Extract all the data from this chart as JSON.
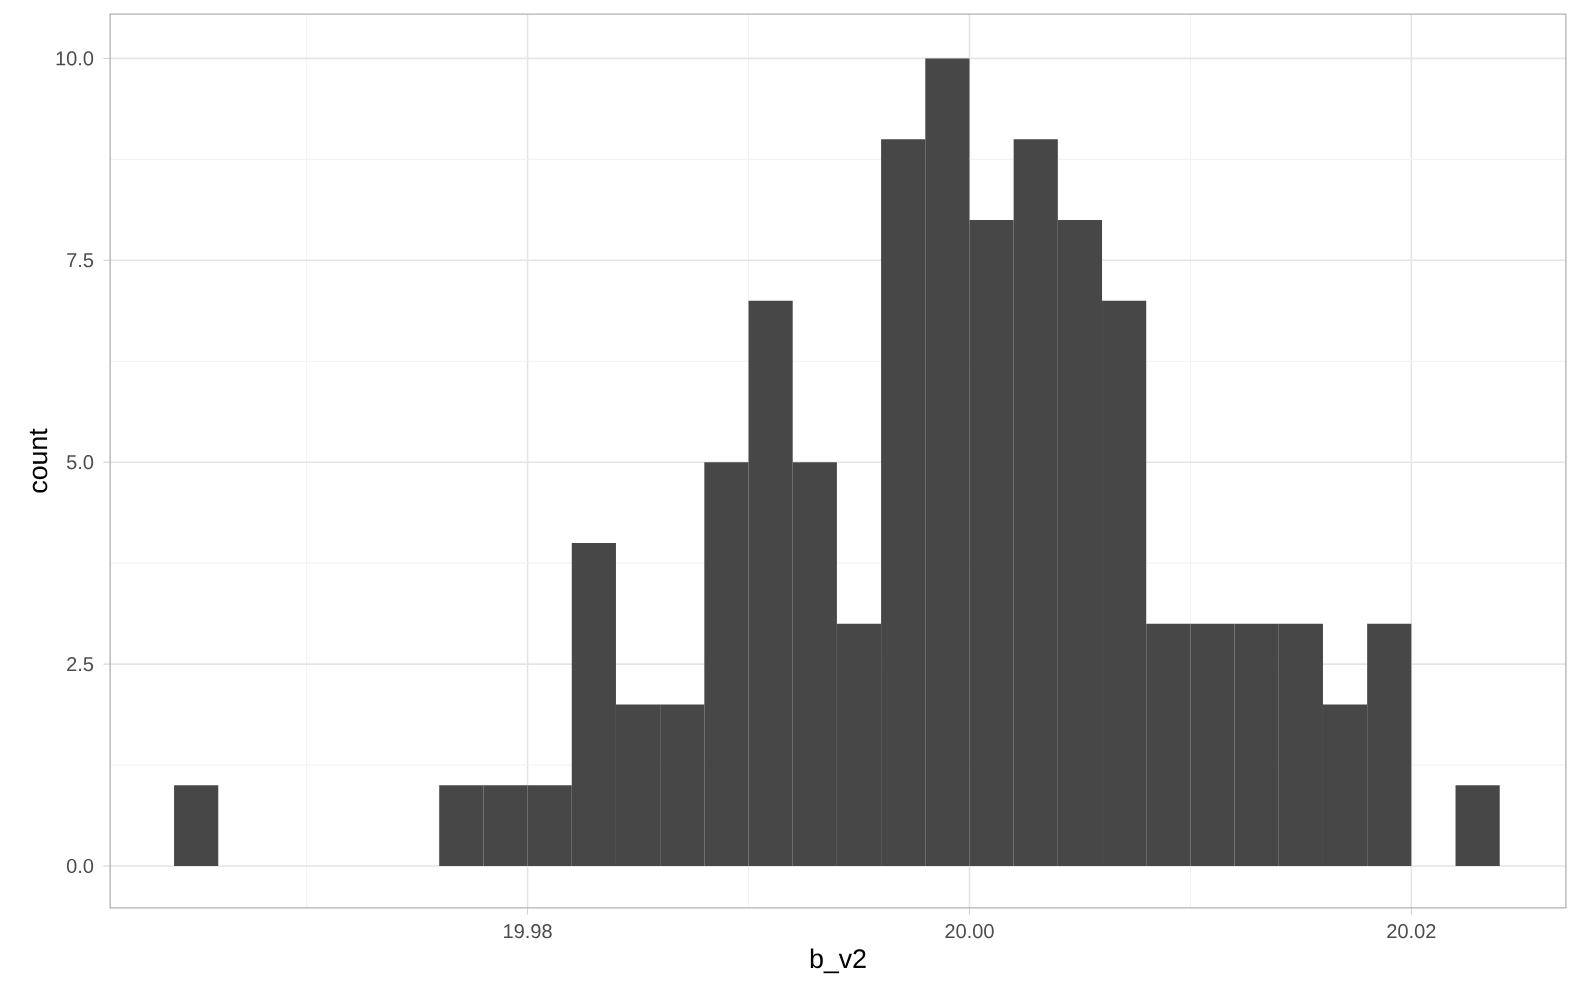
{
  "chart_data": {
    "type": "histogram",
    "xlabel": "b_v2",
    "ylabel": "count",
    "bins": [
      19.964,
      19.966,
      19.968,
      19.97,
      19.972,
      19.974,
      19.976,
      19.978,
      19.98,
      19.982,
      19.984,
      19.986,
      19.988,
      19.99,
      19.992,
      19.994,
      19.996,
      19.998,
      20.0,
      20.002,
      20.004,
      20.006,
      20.008,
      20.01,
      20.012,
      20.014,
      20.016,
      20.018,
      20.02,
      20.022,
      20.024
    ],
    "values": [
      1,
      0,
      0,
      0,
      0,
      0,
      1,
      1,
      1,
      4,
      2,
      2,
      5,
      7,
      5,
      3,
      9,
      10,
      8,
      9,
      8,
      7,
      3,
      3,
      3,
      3,
      2,
      3,
      0,
      1
    ],
    "color": "#474747",
    "xlim": [
      19.9611,
      20.027
    ],
    "ylim": [
      -0.52,
      10.55
    ],
    "xticks": [
      {
        "value": 19.97,
        "label": null
      },
      19.98,
      {
        "value": 19.99,
        "label": null
      },
      {
        "value": 20.0,
        "label": "20.00"
      },
      {
        "value": 20.01,
        "label": null
      },
      20.02
    ],
    "yticks": [
      {
        "value": 0,
        "label": "0.0"
      },
      {
        "value": 1.25,
        "label": null
      },
      {
        "value": 2.5,
        "label": "2.5"
      },
      {
        "value": 3.75,
        "label": null
      },
      {
        "value": 5,
        "label": "5.0"
      },
      {
        "value": 6.25,
        "label": null
      },
      {
        "value": 7.5,
        "label": "7.5"
      },
      {
        "value": 8.75,
        "label": null
      },
      {
        "value": 10,
        "label": "10.0"
      }
    ],
    "grid": true
  }
}
